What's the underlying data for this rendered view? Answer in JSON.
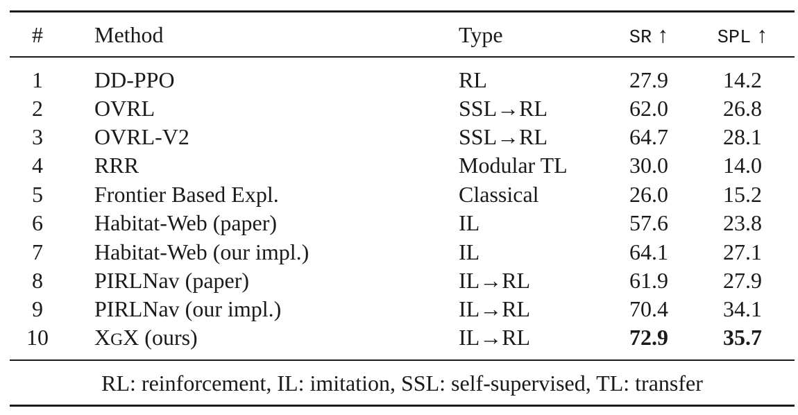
{
  "table": {
    "headers": {
      "num": "#",
      "method": "Method",
      "type": "Type",
      "sr": "SR",
      "spl": "SPL",
      "arrow": "↑"
    },
    "rows": [
      {
        "num": "1",
        "method": "DD-PPO",
        "type": "RL",
        "sr": "27.9",
        "spl": "14.2"
      },
      {
        "num": "2",
        "method": "OVRL",
        "type": "SSL→RL",
        "sr": "62.0",
        "spl": "26.8"
      },
      {
        "num": "3",
        "method": "OVRL-V2",
        "type": "SSL→RL",
        "sr": "64.7",
        "spl": "28.1"
      },
      {
        "num": "4",
        "method": "RRR",
        "type": "Modular TL",
        "sr": "30.0",
        "spl": "14.0"
      },
      {
        "num": "5",
        "method": "Frontier Based Expl.",
        "type": "Classical",
        "sr": "26.0",
        "spl": "15.2"
      },
      {
        "num": "6",
        "method": "Habitat-Web (paper)",
        "type": "IL",
        "sr": "57.6",
        "spl": "23.8"
      },
      {
        "num": "7",
        "method": "Habitat-Web (our impl.)",
        "type": "IL",
        "sr": "64.1",
        "spl": "27.1"
      },
      {
        "num": "8",
        "method": "PIRLNav (paper)",
        "type": "IL→RL",
        "sr": "61.9",
        "spl": "27.9"
      },
      {
        "num": "9",
        "method": "PIRLNav (our impl.)",
        "type": "IL→RL",
        "sr": "70.4",
        "spl": "34.1"
      },
      {
        "num": "10",
        "method_parts": [
          "X",
          "G",
          "X",
          " (ours)"
        ],
        "type": "IL→RL",
        "sr": "72.9",
        "spl": "35.7"
      }
    ],
    "footnote": "RL: reinforcement, IL: imitation, SSL: self-supervised, TL: transfer"
  }
}
